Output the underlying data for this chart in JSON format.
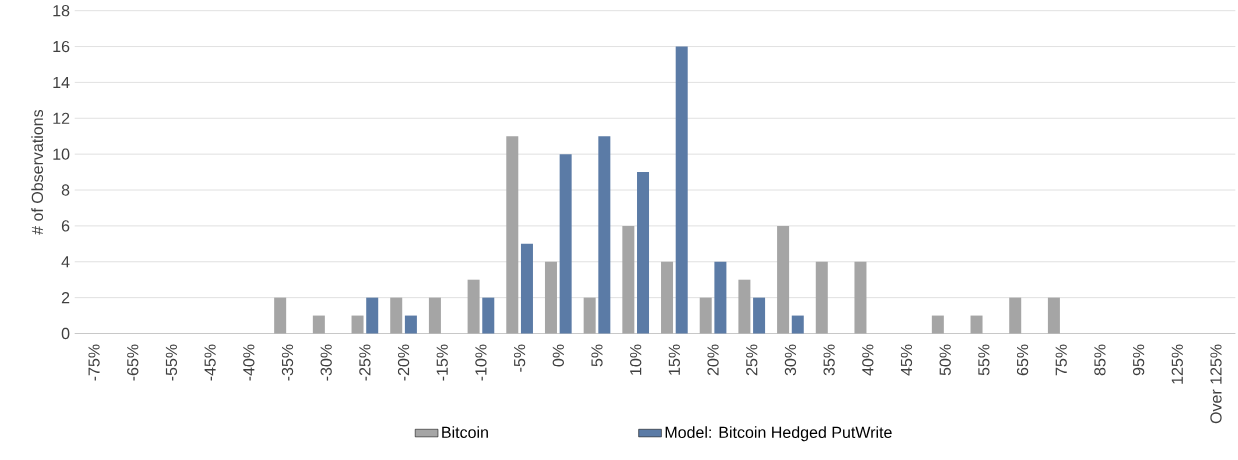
{
  "chart_data": {
    "type": "bar",
    "ylabel": "# of Observations",
    "categories": [
      "-75%",
      "-65%",
      "-55%",
      "-45%",
      "-40%",
      "-35%",
      "-30%",
      "-25%",
      "-20%",
      "-15%",
      "-10%",
      "-5%",
      "0%",
      "5%",
      "10%",
      "15%",
      "20%",
      "25%",
      "30%",
      "35%",
      "40%",
      "45%",
      "50%",
      "55%",
      "65%",
      "75%",
      "85%",
      "95%",
      "125%",
      "Over 125%"
    ],
    "series": [
      {
        "name": "Bitcoin",
        "color": "#a5a5a5",
        "values": [
          0,
          0,
          0,
          0,
          0,
          2,
          1,
          1,
          2,
          2,
          3,
          11,
          4,
          2,
          6,
          4,
          2,
          3,
          6,
          4,
          4,
          0,
          1,
          1,
          2,
          2,
          0,
          0,
          0,
          0
        ]
      },
      {
        "name": "Model: Bitcoin Hedged PutWrite",
        "color": "#5b7ba6",
        "values": [
          0,
          0,
          0,
          0,
          0,
          0,
          0,
          2,
          1,
          0,
          2,
          5,
          10,
          11,
          9,
          16,
          4,
          2,
          1,
          0,
          0,
          0,
          0,
          0,
          0,
          0,
          0,
          0,
          0,
          0
        ]
      }
    ],
    "ylim": [
      0,
      18
    ],
    "yticks": [
      0,
      2,
      4,
      6,
      8,
      10,
      12,
      14,
      16,
      18
    ],
    "grid": "y",
    "legend": "bottom"
  }
}
